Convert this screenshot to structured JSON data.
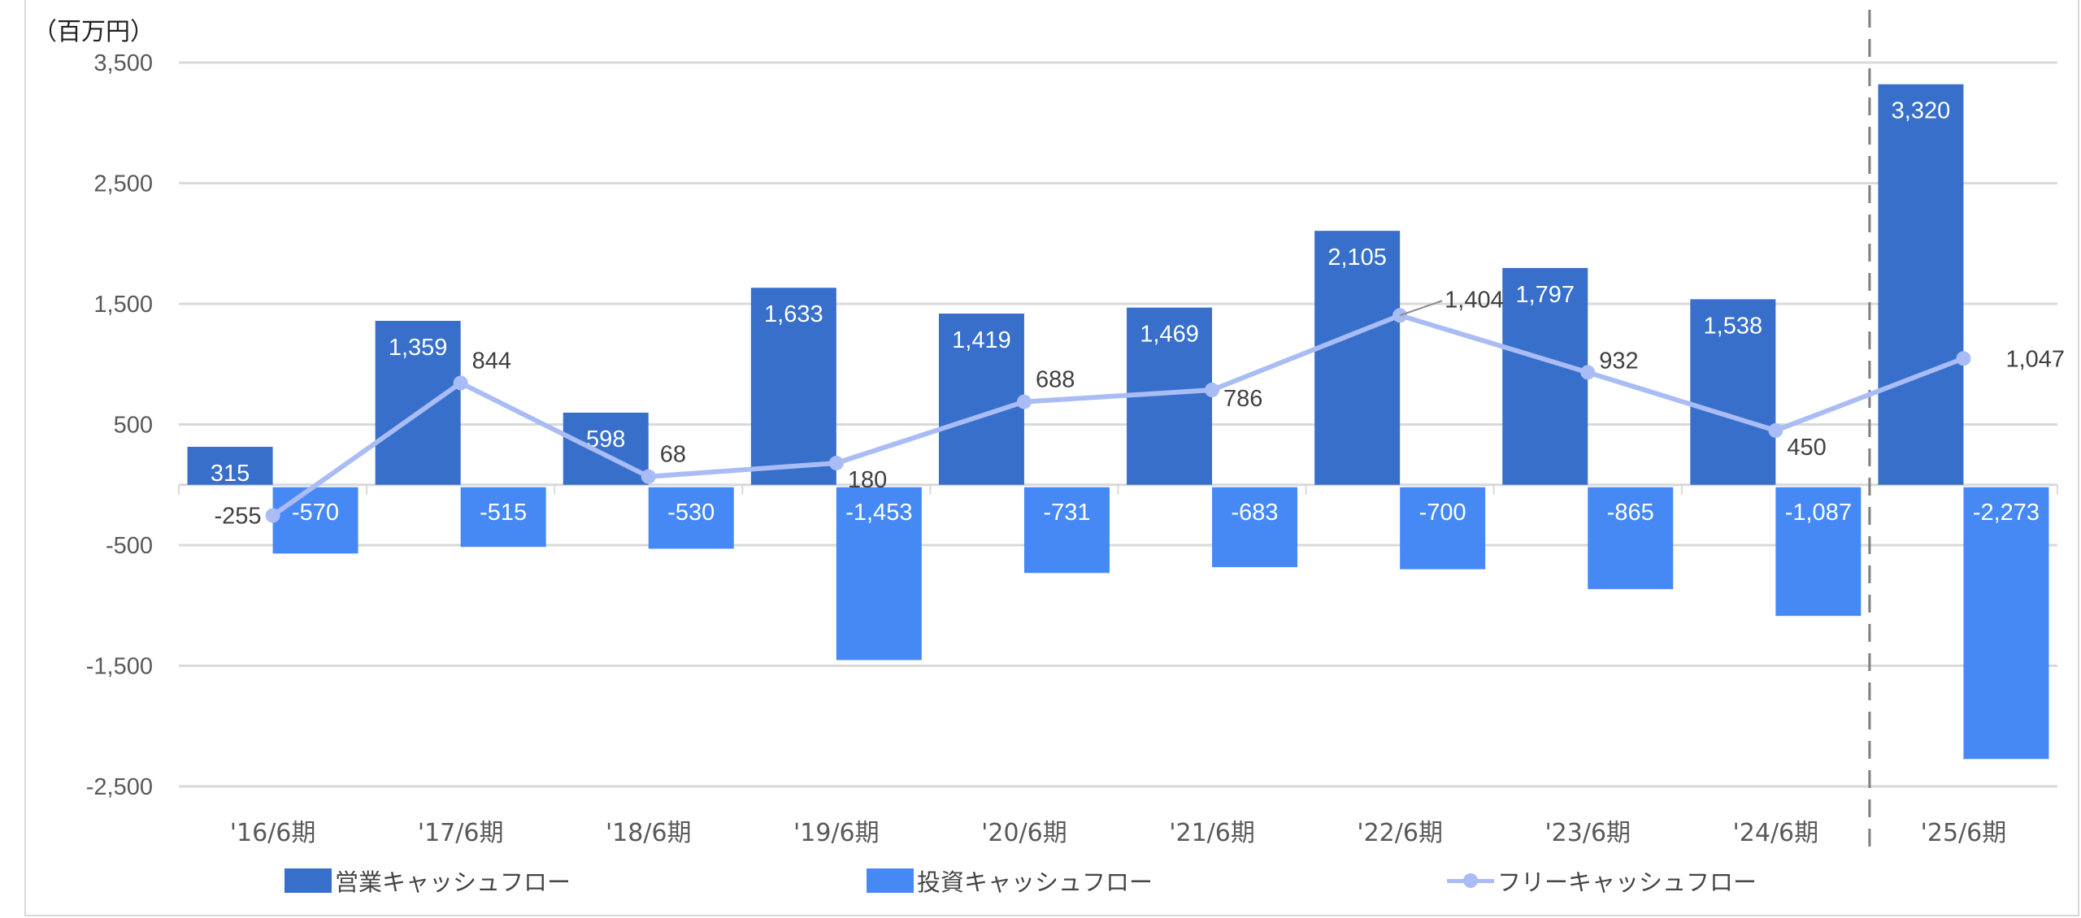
{
  "chart_data": {
    "type": "bar",
    "unit_label": "（百万円）",
    "categories": [
      "'16/6期",
      "'17/6期",
      "'18/6期",
      "'19/6期",
      "'20/6期",
      "'21/6期",
      "'22/6期",
      "'23/6期",
      "'24/6期",
      "'25/6期"
    ],
    "series": [
      {
        "name": "営業キャッシュフロー",
        "type": "bar",
        "color": "#376fca",
        "values": [
          315,
          1359,
          598,
          1633,
          1419,
          1469,
          2105,
          1797,
          1538,
          3320
        ],
        "labels": [
          "315",
          "1,359",
          "598",
          "1,633",
          "1,419",
          "1,469",
          "2,105",
          "1,797",
          "1,538",
          "3,320"
        ]
      },
      {
        "name": "投資キャッシュフロー",
        "type": "bar",
        "color": "#4689f5",
        "values": [
          -570,
          -515,
          -530,
          -1453,
          -731,
          -683,
          -700,
          -865,
          -1087,
          -2273
        ],
        "labels": [
          "-570",
          "-515",
          "-530",
          "-1,453",
          "-731",
          "-683",
          "-700",
          "-865",
          "-1,087",
          "-2,273"
        ]
      },
      {
        "name": "フリーキャッシュフロー",
        "type": "line",
        "color": "#a9bcf5",
        "values": [
          -255,
          844,
          68,
          180,
          688,
          786,
          1404,
          932,
          450,
          1047
        ],
        "labels": [
          "-255",
          "844",
          "68",
          "180",
          "688",
          "786",
          "1,404",
          "932",
          "450",
          "1,047"
        ]
      }
    ],
    "yticks": [
      3500,
      2500,
      1500,
      500,
      -500,
      -1500,
      -2500
    ],
    "ytick_labels": [
      "3,500",
      "2,500",
      "1,500",
      "500",
      "-500",
      "-1,500",
      "-2,500"
    ],
    "ylim": [
      -2500,
      3500
    ],
    "grid": true,
    "legend_position": "bottom",
    "divider_after_category": "'24/6期"
  }
}
